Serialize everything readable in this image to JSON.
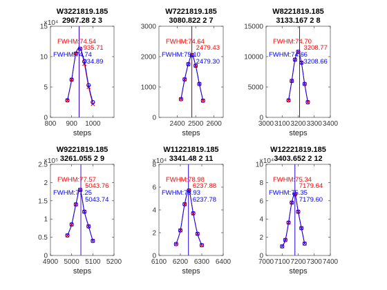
{
  "chart_data": [
    {
      "type": "line",
      "title": "W3221819.185",
      "subtitle": "2967.28 2 3",
      "xlabel": "steps",
      "xlim": [
        800,
        1100
      ],
      "ylim": [
        0,
        150000
      ],
      "exponent": "×10⁴",
      "xticks": [
        800,
        900,
        1000
      ],
      "yticks": [
        0,
        50000,
        100000,
        150000
      ],
      "xtick_labels": [
        "800",
        "900",
        "1000"
      ],
      "ytick_labels": [
        "0",
        "5",
        "10",
        "15"
      ],
      "vline_red": 935.71,
      "vline_blue": 934.89,
      "red_fwhm_label": "FWHM:74.54",
      "red_center_label": "935.71",
      "blue_fwhm_label": "FWHM:74.74",
      "blue_center_label": "934.89",
      "series": [
        {
          "color": "#ff0000",
          "x": [
            880,
            900,
            920,
            940,
            960,
            980,
            1000
          ],
          "y": [
            28000,
            62000,
            105000,
            113000,
            88000,
            50000,
            22000
          ]
        },
        {
          "color": "#0000ff",
          "x": [
            880,
            900,
            920,
            940,
            960,
            980,
            1000
          ],
          "y": [
            28000,
            62000,
            105000,
            113000,
            92000,
            53000,
            25000
          ]
        }
      ]
    },
    {
      "type": "line",
      "title": "W7221819.185",
      "subtitle": "3080.822 2 7",
      "xlabel": "steps",
      "xlim": [
        2300,
        2650
      ],
      "ylim": [
        0,
        3000
      ],
      "xticks": [
        2400,
        2500,
        2600
      ],
      "yticks": [
        0,
        1000,
        2000,
        3000
      ],
      "xtick_labels": [
        "2400",
        "2500",
        "2600"
      ],
      "ytick_labels": [
        "0",
        "1000",
        "2000",
        "3000"
      ],
      "vline_red": 2479.43,
      "vline_blue": 2479.3,
      "red_fwhm_label": "FWHM:74.64",
      "red_center_label": "2479.43",
      "blue_fwhm_label": "FWHM:75.10",
      "blue_center_label": "2479.30",
      "series": [
        {
          "color": "#ff0000",
          "x": [
            2420,
            2440,
            2460,
            2480,
            2500,
            2520,
            2540
          ],
          "y": [
            600,
            1250,
            1750,
            2050,
            1700,
            1100,
            550
          ]
        },
        {
          "color": "#0000ff",
          "x": [
            2420,
            2440,
            2460,
            2480,
            2500,
            2520,
            2540
          ],
          "y": [
            600,
            1250,
            1750,
            2050,
            1700,
            1100,
            550
          ]
        }
      ]
    },
    {
      "type": "line",
      "title": "W8221819.185",
      "subtitle": "3133.167 2 8",
      "xlabel": "steps",
      "xlim": [
        3000,
        3400
      ],
      "ylim": [
        0,
        15000
      ],
      "xticks": [
        3000,
        3100,
        3200,
        3300,
        3400
      ],
      "yticks": [
        0,
        5000,
        10000,
        15000
      ],
      "xtick_labels": [
        "3000",
        "3100",
        "3200",
        "3300",
        "3400"
      ],
      "ytick_labels": [
        "0",
        "5000",
        "10000",
        "15000"
      ],
      "vline_red": 3208.77,
      "vline_blue": 3208.66,
      "red_fwhm_label": "FWHM:74.70",
      "red_center_label": "3208.77",
      "blue_fwhm_label": "FWHM:74.66",
      "blue_center_label": "3208.66",
      "series": [
        {
          "color": "#ff0000",
          "x": [
            3140,
            3160,
            3180,
            3200,
            3220,
            3240,
            3260
          ],
          "y": [
            2800,
            6000,
            9500,
            10800,
            9000,
            5500,
            2500
          ]
        },
        {
          "color": "#0000ff",
          "x": [
            3140,
            3160,
            3180,
            3200,
            3220,
            3240,
            3260
          ],
          "y": [
            2800,
            6000,
            9500,
            10800,
            9000,
            5500,
            2500
          ]
        }
      ]
    },
    {
      "type": "line",
      "title": "W9221819.185",
      "subtitle": "3261.055 2 9",
      "xlabel": "steps",
      "xlim": [
        4900,
        5200
      ],
      "ylim": [
        0,
        250000
      ],
      "exponent": "×10⁵",
      "xticks": [
        4900,
        5000,
        5100,
        5200
      ],
      "yticks": [
        0,
        50000,
        100000,
        150000,
        200000,
        250000
      ],
      "xtick_labels": [
        "4900",
        "5000",
        "5100",
        "5200"
      ],
      "ytick_labels": [
        "0",
        "0.5",
        "1",
        "1.5",
        "2",
        "2.5"
      ],
      "vline_red": 5043.76,
      "vline_blue": 5043.74,
      "red_fwhm_label": "FWHM:77.57",
      "red_center_label": "5043.76",
      "blue_fwhm_label": "FWHM:77.25",
      "blue_center_label": "5043.74",
      "series": [
        {
          "color": "#ff0000",
          "x": [
            4980,
            5000,
            5020,
            5040,
            5060,
            5080,
            5100
          ],
          "y": [
            55000,
            85000,
            140000,
            180000,
            120000,
            80000,
            40000
          ]
        },
        {
          "color": "#0000ff",
          "x": [
            4980,
            5000,
            5020,
            5040,
            5060,
            5080,
            5100
          ],
          "y": [
            55000,
            85000,
            140000,
            180000,
            120000,
            80000,
            40000
          ]
        }
      ]
    },
    {
      "type": "line",
      "title": "W11221819.185",
      "subtitle": "3341.48 2 11",
      "xlabel": "steps",
      "xlim": [
        6100,
        6400
      ],
      "ylim": [
        0,
        80000
      ],
      "exponent": "×10⁴",
      "xticks": [
        6100,
        6200,
        6300,
        6400
      ],
      "yticks": [
        0,
        20000,
        40000,
        60000,
        80000
      ],
      "xtick_labels": [
        "6100",
        "6200",
        "6300",
        "6400"
      ],
      "ytick_labels": [
        "0",
        "2",
        "4",
        "6",
        "8"
      ],
      "vline_red": 6237.88,
      "vline_blue": 6237.78,
      "red_fwhm_label": "FWHM:78.98",
      "red_center_label": "6237.88",
      "blue_fwhm_label": "FWHM:78.93",
      "blue_center_label": "6237.78",
      "series": [
        {
          "color": "#ff0000",
          "x": [
            6180,
            6200,
            6220,
            6240,
            6260,
            6280,
            6300
          ],
          "y": [
            10000,
            22000,
            45000,
            57000,
            37000,
            19000,
            9000
          ]
        },
        {
          "color": "#0000ff",
          "x": [
            6180,
            6200,
            6220,
            6240,
            6260,
            6280,
            6300
          ],
          "y": [
            10000,
            22000,
            45000,
            57000,
            37000,
            19000,
            9000
          ]
        }
      ]
    },
    {
      "type": "line",
      "title": "W12221819.185",
      "subtitle": "3403.652 2 12",
      "xlabel": "steps",
      "xlim": [
        7000,
        7400
      ],
      "ylim": [
        0,
        100000
      ],
      "exponent": "×10⁴",
      "xticks": [
        7000,
        7100,
        7200,
        7300,
        7400
      ],
      "yticks": [
        0,
        20000,
        40000,
        60000,
        80000,
        100000
      ],
      "xtick_labels": [
        "7000",
        "7100",
        "7200",
        "7300",
        "7400"
      ],
      "ytick_labels": [
        "0",
        "2",
        "4",
        "6",
        "8",
        "10"
      ],
      "vline_red": 7179.64,
      "vline_blue": 7179.6,
      "red_fwhm_label": "FWHM:75.34",
      "red_center_label": "7179.64",
      "blue_fwhm_label": "FWHM:75.35",
      "blue_center_label": "7179.60",
      "series": [
        {
          "color": "#ff0000",
          "x": [
            7100,
            7120,
            7140,
            7160,
            7180,
            7200,
            7220,
            7240
          ],
          "y": [
            10000,
            17000,
            36000,
            58000,
            67000,
            48000,
            30000,
            13000
          ]
        },
        {
          "color": "#0000ff",
          "x": [
            7100,
            7120,
            7140,
            7160,
            7180,
            7200,
            7220,
            7240
          ],
          "y": [
            10000,
            17000,
            36000,
            58000,
            67000,
            48000,
            30000,
            13000
          ]
        }
      ]
    }
  ]
}
